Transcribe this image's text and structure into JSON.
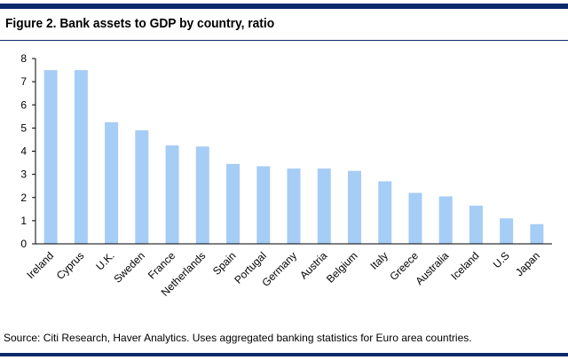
{
  "header": {
    "title": "Figure 2. Bank assets to GDP by country, ratio"
  },
  "footer": {
    "source": "Source: Citi Research, Haver Analytics. Uses aggregated banking statistics for Euro area countries."
  },
  "colors": {
    "bar": "#a6cdf5",
    "rule": "#0a2a6b",
    "axis": "#000000"
  },
  "chart_data": {
    "type": "bar",
    "title": "Figure 2. Bank assets to GDP by country, ratio",
    "xlabel": "",
    "ylabel": "",
    "ylim": [
      0,
      8
    ],
    "yticks": [
      0,
      1,
      2,
      3,
      4,
      5,
      6,
      7,
      8
    ],
    "grid": false,
    "legend": "none",
    "categories": [
      "Ireland",
      "Cyprus",
      "U.K.",
      "Sweden",
      "France",
      "Netherlands",
      "Spain",
      "Portugal",
      "Germany",
      "Austria",
      "Belgium",
      "Italy",
      "Greece",
      "Australia",
      "Iceland",
      "U.S",
      "Japan"
    ],
    "values": [
      7.5,
      7.5,
      5.25,
      4.9,
      4.25,
      4.2,
      3.45,
      3.35,
      3.25,
      3.25,
      3.15,
      2.7,
      2.2,
      2.05,
      1.65,
      1.1,
      0.85
    ]
  }
}
